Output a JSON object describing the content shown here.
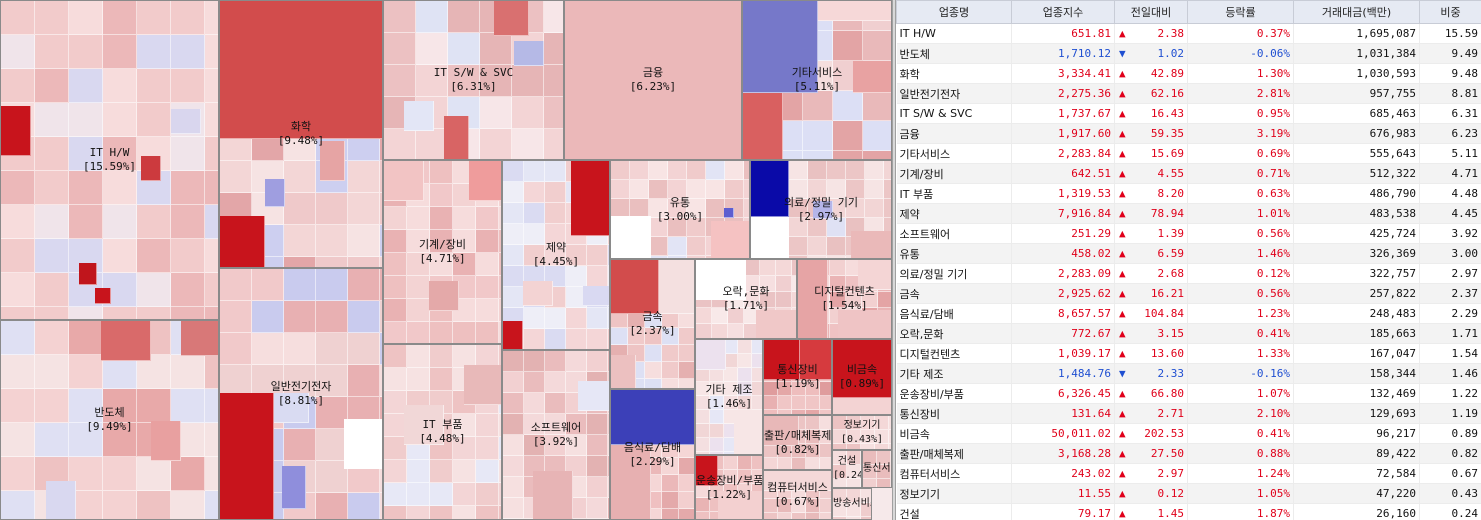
{
  "colors": {
    "up": "#e0001a",
    "down": "#1f4fd1"
  },
  "table": {
    "headers": [
      "업종명",
      "업종지수",
      "전일대비",
      "등락률",
      "거래대금(백만)",
      "비중"
    ],
    "rows": [
      {
        "name": "IT H/W",
        "index": "651.81",
        "dir": "up",
        "change": "2.38",
        "rate": "0.37%",
        "amount": "1,695,087",
        "weight": "15.59"
      },
      {
        "name": "반도체",
        "index": "1,710.12",
        "dir": "down",
        "change": "1.02",
        "rate": "-0.06%",
        "amount": "1,031,384",
        "weight": "9.49"
      },
      {
        "name": "화학",
        "index": "3,334.41",
        "dir": "up",
        "change": "42.89",
        "rate": "1.30%",
        "amount": "1,030,593",
        "weight": "9.48"
      },
      {
        "name": "일반전기전자",
        "index": "2,275.36",
        "dir": "up",
        "change": "62.16",
        "rate": "2.81%",
        "amount": "957,755",
        "weight": "8.81"
      },
      {
        "name": "IT S/W & SVC",
        "index": "1,737.67",
        "dir": "up",
        "change": "16.43",
        "rate": "0.95%",
        "amount": "685,463",
        "weight": "6.31"
      },
      {
        "name": "금융",
        "index": "1,917.60",
        "dir": "up",
        "change": "59.35",
        "rate": "3.19%",
        "amount": "676,983",
        "weight": "6.23"
      },
      {
        "name": "기타서비스",
        "index": "2,283.84",
        "dir": "up",
        "change": "15.69",
        "rate": "0.69%",
        "amount": "555,643",
        "weight": "5.11"
      },
      {
        "name": "기계/장비",
        "index": "642.51",
        "dir": "up",
        "change": "4.55",
        "rate": "0.71%",
        "amount": "512,322",
        "weight": "4.71"
      },
      {
        "name": "IT 부품",
        "index": "1,319.53",
        "dir": "up",
        "change": "8.20",
        "rate": "0.63%",
        "amount": "486,790",
        "weight": "4.48"
      },
      {
        "name": "제약",
        "index": "7,916.84",
        "dir": "up",
        "change": "78.94",
        "rate": "1.01%",
        "amount": "483,538",
        "weight": "4.45"
      },
      {
        "name": "소프트웨어",
        "index": "251.29",
        "dir": "up",
        "change": "1.39",
        "rate": "0.56%",
        "amount": "425,724",
        "weight": "3.92"
      },
      {
        "name": "유통",
        "index": "458.02",
        "dir": "up",
        "change": "6.59",
        "rate": "1.46%",
        "amount": "326,369",
        "weight": "3.00"
      },
      {
        "name": "의료/정밀 기기",
        "index": "2,283.09",
        "dir": "up",
        "change": "2.68",
        "rate": "0.12%",
        "amount": "322,757",
        "weight": "2.97"
      },
      {
        "name": "금속",
        "index": "2,925.62",
        "dir": "up",
        "change": "16.21",
        "rate": "0.56%",
        "amount": "257,822",
        "weight": "2.37"
      },
      {
        "name": "음식료/담배",
        "index": "8,657.57",
        "dir": "up",
        "change": "104.84",
        "rate": "1.23%",
        "amount": "248,483",
        "weight": "2.29"
      },
      {
        "name": "오락,문화",
        "index": "772.67",
        "dir": "up",
        "change": "3.15",
        "rate": "0.41%",
        "amount": "185,663",
        "weight": "1.71"
      },
      {
        "name": "디지털컨텐츠",
        "index": "1,039.17",
        "dir": "up",
        "change": "13.60",
        "rate": "1.33%",
        "amount": "167,047",
        "weight": "1.54"
      },
      {
        "name": "기타 제조",
        "index": "1,484.76",
        "dir": "down",
        "change": "2.33",
        "rate": "-0.16%",
        "amount": "158,344",
        "weight": "1.46"
      },
      {
        "name": "운송장비/부품",
        "index": "6,326.45",
        "dir": "up",
        "change": "66.80",
        "rate": "1.07%",
        "amount": "132,469",
        "weight": "1.22"
      },
      {
        "name": "통신장비",
        "index": "131.64",
        "dir": "up",
        "change": "2.71",
        "rate": "2.10%",
        "amount": "129,693",
        "weight": "1.19"
      },
      {
        "name": "비금속",
        "index": "50,011.02",
        "dir": "up",
        "change": "202.53",
        "rate": "0.41%",
        "amount": "96,217",
        "weight": "0.89"
      },
      {
        "name": "출판/매체복제",
        "index": "3,168.28",
        "dir": "up",
        "change": "27.50",
        "rate": "0.88%",
        "amount": "89,422",
        "weight": "0.82"
      },
      {
        "name": "컴퓨터서비스",
        "index": "243.02",
        "dir": "up",
        "change": "2.97",
        "rate": "1.24%",
        "amount": "72,584",
        "weight": "0.67"
      },
      {
        "name": "정보기기",
        "index": "11.55",
        "dir": "up",
        "change": "0.12",
        "rate": "1.05%",
        "amount": "47,220",
        "weight": "0.43"
      },
      {
        "name": "건설",
        "index": "79.17",
        "dir": "up",
        "change": "1.45",
        "rate": "1.87%",
        "amount": "26,160",
        "weight": "0.24"
      }
    ]
  },
  "treemap": {
    "sectors": [
      {
        "id": "ith",
        "name": "IT H/W",
        "pct": "[15.59%]"
      },
      {
        "id": "semi",
        "name": "반도체",
        "pct": "[9.49%]"
      },
      {
        "id": "chem",
        "name": "화학",
        "pct": "[9.48%]"
      },
      {
        "id": "elec",
        "name": "일반전기전자",
        "pct": "[8.81%]"
      },
      {
        "id": "itsw",
        "name": "IT S/W & SVC",
        "pct": "[6.31%]"
      },
      {
        "id": "fin",
        "name": "금융",
        "pct": "[6.23%]"
      },
      {
        "id": "etcsvc",
        "name": "기타서비스",
        "pct": "[5.11%]"
      },
      {
        "id": "mach",
        "name": "기계/장비",
        "pct": "[4.71%]"
      },
      {
        "id": "itpart",
        "name": "IT 부품",
        "pct": "[4.48%]"
      },
      {
        "id": "pharma",
        "name": "제약",
        "pct": "[4.45%]"
      },
      {
        "id": "soft",
        "name": "소프트웨어",
        "pct": "[3.92%]"
      },
      {
        "id": "dist",
        "name": "유통",
        "pct": "[3.00%]"
      },
      {
        "id": "med",
        "name": "의료/정밀 기기",
        "pct": "[2.97%]"
      },
      {
        "id": "metal",
        "name": "금속",
        "pct": "[2.37%]"
      },
      {
        "id": "food",
        "name": "음식료/담배",
        "pct": "[2.29%]"
      },
      {
        "id": "ent",
        "name": "오락,문화",
        "pct": "[1.71%]"
      },
      {
        "id": "digital",
        "name": "디지털컨텐츠",
        "pct": "[1.54%]"
      },
      {
        "id": "etcmfg",
        "name": "기타 제조",
        "pct": "[1.46%]"
      },
      {
        "id": "trans",
        "name": "운송장비/부품",
        "pct": "[1.22%]"
      },
      {
        "id": "telecom",
        "name": "통신장비",
        "pct": "[1.19%]"
      },
      {
        "id": "nonmetal",
        "name": "비금속",
        "pct": "[0.89%]"
      },
      {
        "id": "publish",
        "name": "출판/매체복제",
        "pct": "[0.82%]"
      },
      {
        "id": "info",
        "name": "정보기기",
        "pct": "[0.43%]"
      },
      {
        "id": "comp",
        "name": "컴퓨터서비스",
        "pct": "[0.67%]"
      },
      {
        "id": "build",
        "name": "건설",
        "pct": "[0.24%]"
      },
      {
        "id": "broadcast",
        "name": "방송서비스",
        "pct": ""
      },
      {
        "id": "telsvc",
        "name": "통신서비스",
        "pct": ""
      }
    ]
  }
}
